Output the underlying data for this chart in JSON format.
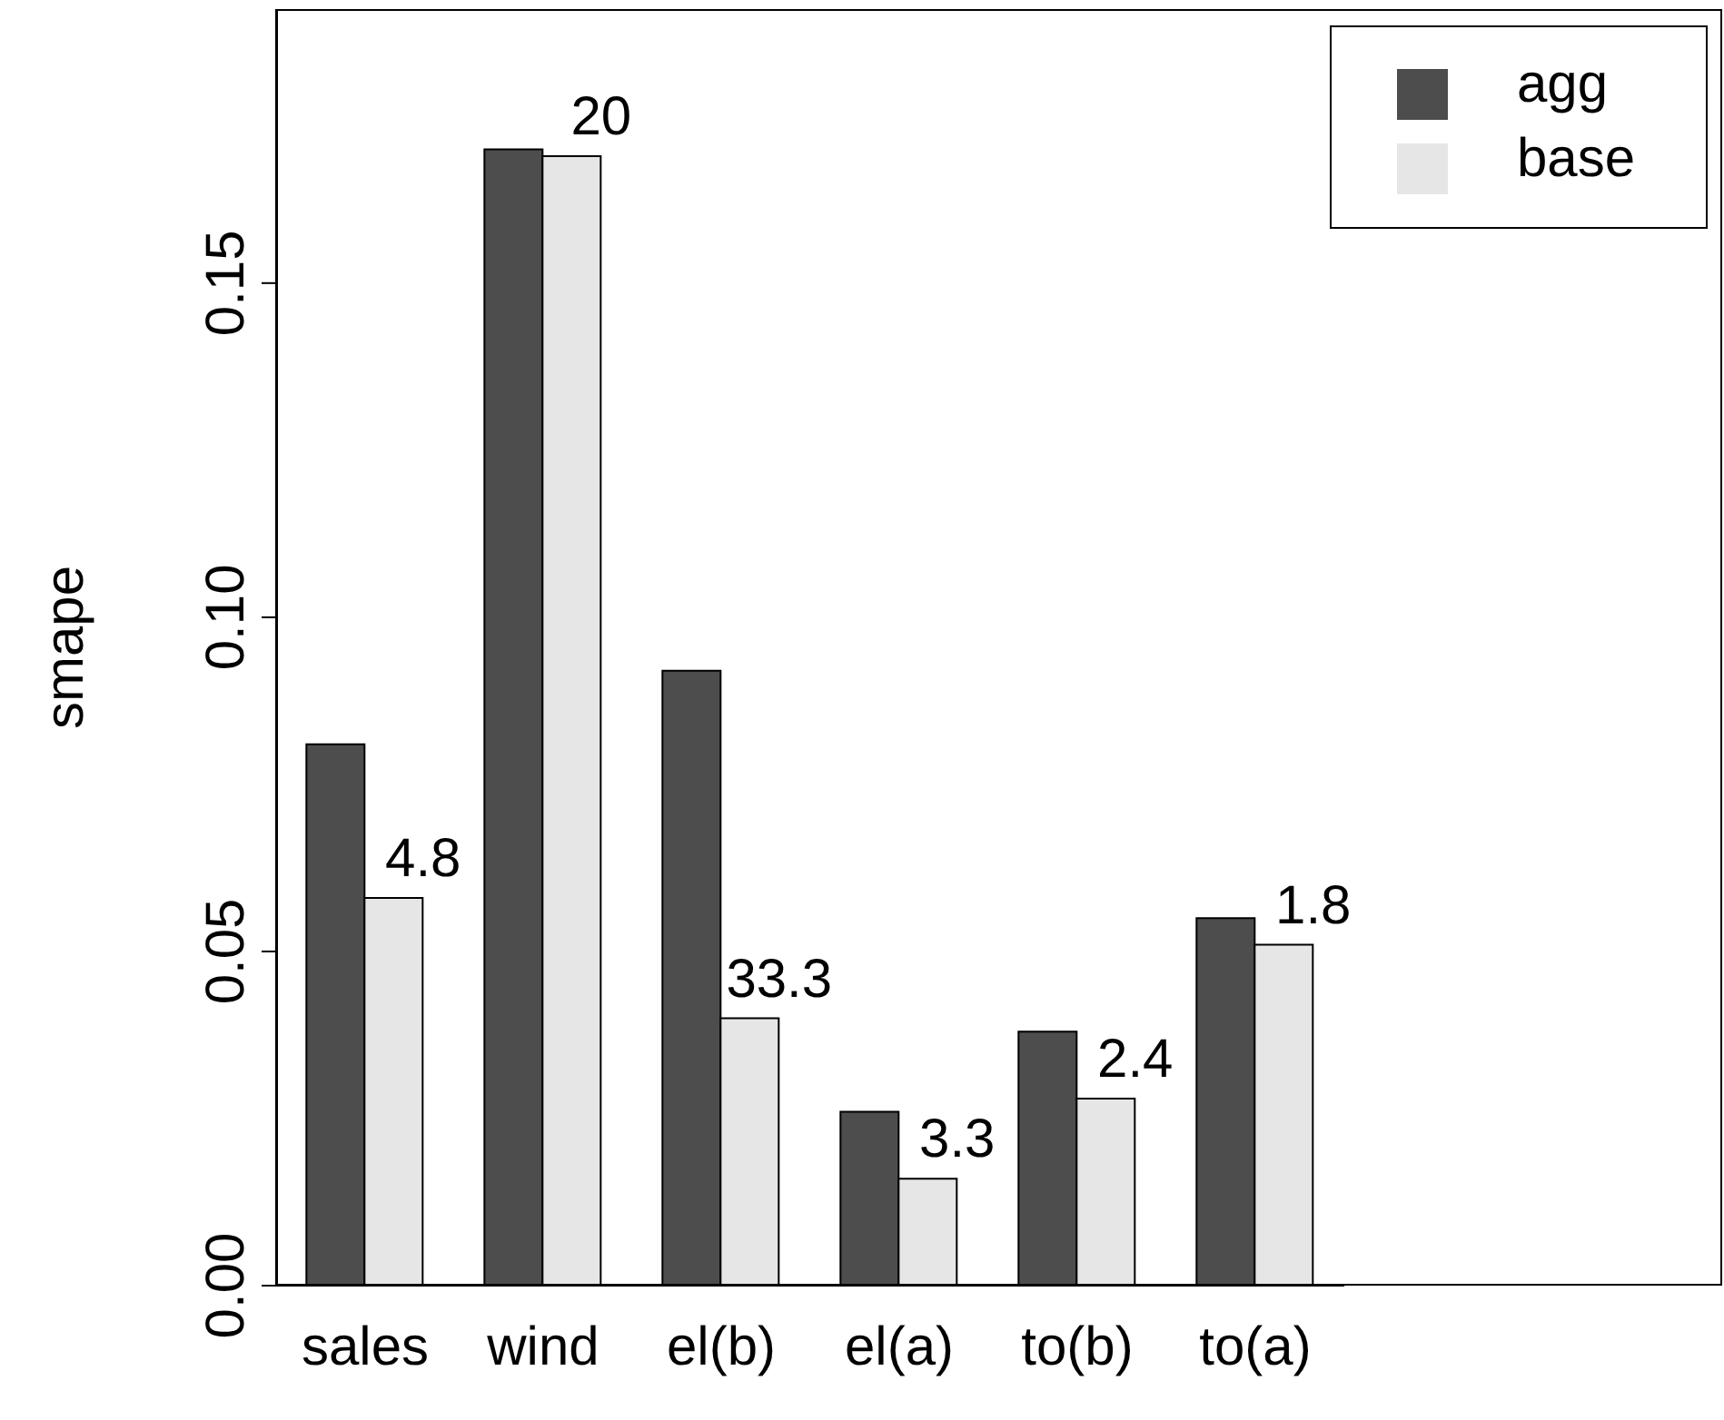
{
  "chart_data": {
    "type": "bar",
    "ylabel": "smape",
    "categories": [
      "sales",
      "wind",
      "el(b)",
      "el(a)",
      "to(b)",
      "to(a)"
    ],
    "series": [
      {
        "name": "agg",
        "color": "#4d4d4d",
        "values": [
          0.081,
          0.17,
          0.092,
          0.026,
          0.038,
          0.055
        ]
      },
      {
        "name": "base",
        "color": "#e6e6e6",
        "values": [
          0.058,
          0.169,
          0.04,
          0.016,
          0.028,
          0.051
        ]
      }
    ],
    "annotations": [
      {
        "text": "4.8",
        "x": "sales",
        "y": 0.058
      },
      {
        "text": "20",
        "x": "wind",
        "y": 0.169
      },
      {
        "text": "33.3",
        "x": "el(b)",
        "y": 0.04
      },
      {
        "text": "3.3",
        "x": "el(a)",
        "y": 0.016
      },
      {
        "text": "2.4",
        "x": "to(b)",
        "y": 0.028
      },
      {
        "text": "1.8",
        "x": "to(a)",
        "y": 0.051
      }
    ],
    "ylim": [
      0,
      0.191
    ],
    "yticks": [
      {
        "value": 0,
        "label": "0.00"
      },
      {
        "value": 0.05,
        "label": "0.05"
      },
      {
        "value": 0.1,
        "label": "0.10"
      },
      {
        "value": 0.15,
        "label": "0.15"
      }
    ],
    "grid": false,
    "legend": "top right"
  }
}
